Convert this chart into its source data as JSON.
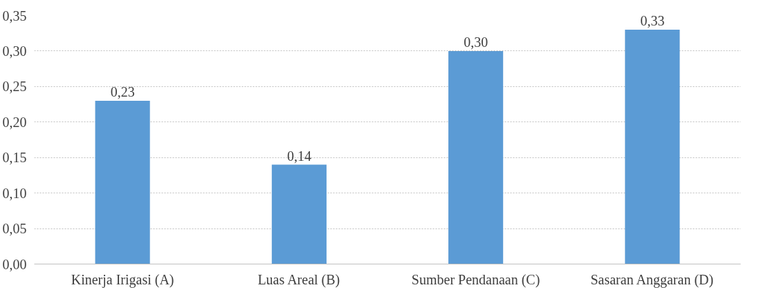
{
  "chart_data": {
    "type": "bar",
    "categories": [
      "Kinerja Irigasi (A)",
      "Luas Areal (B)",
      "Sumber Pendanaan (C)",
      "Sasaran Anggaran (D)"
    ],
    "values": [
      0.23,
      0.14,
      0.3,
      0.33
    ],
    "value_labels": [
      "0,23",
      "0,14",
      "0,30",
      "0,33"
    ],
    "color": "#5b9bd5",
    "ylim": [
      0,
      0.35
    ],
    "yticks": [
      {
        "value": 0,
        "label": "0,00"
      },
      {
        "value": 0.05,
        "label": "0,05"
      },
      {
        "value": 0.1,
        "label": "0,10"
      },
      {
        "value": 0.15,
        "label": "0,15"
      },
      {
        "value": 0.2,
        "label": "0,20"
      },
      {
        "value": 0.25,
        "label": "0,25"
      },
      {
        "value": 0.3,
        "label": "0,30"
      },
      {
        "value": 0.35,
        "label": "0,35"
      }
    ],
    "grid": "y"
  }
}
